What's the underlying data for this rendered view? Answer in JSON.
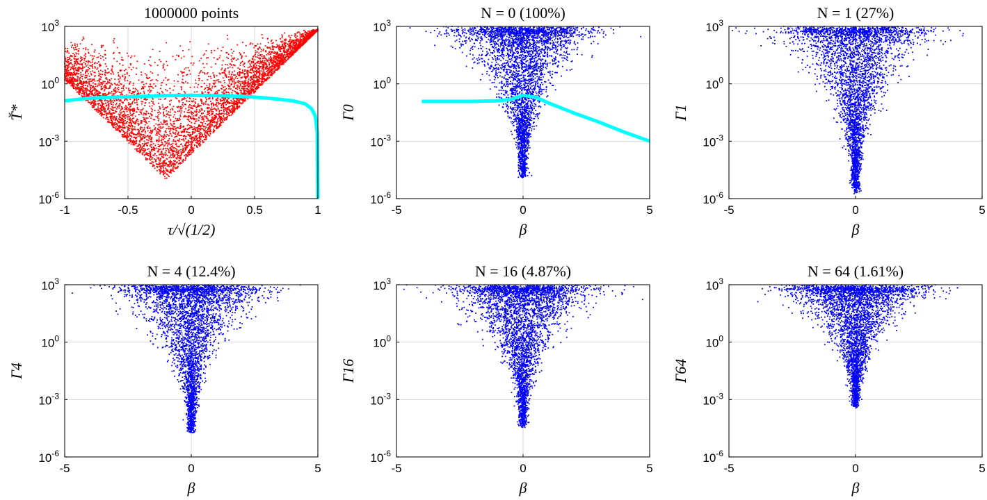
{
  "chart_data": [
    {
      "type": "scatter",
      "title": "1000000 points",
      "xlabel": "τ/√(1/2)",
      "ylabel": "T̆*",
      "x_ticks": [
        "-1",
        "-0.5",
        "0",
        "0.5",
        "1"
      ],
      "xlim": [
        -1,
        1
      ],
      "y_scale": "log",
      "ylim": [
        1e-06,
        1000.0
      ],
      "y_ticks": [
        {
          "base": "10",
          "exp": "-6"
        },
        {
          "base": "10",
          "exp": "-3"
        },
        {
          "base": "10",
          "exp": "0"
        },
        {
          "base": "10",
          "exp": "3"
        }
      ],
      "grid": true,
      "colors": {
        "points": "#ff0000",
        "curve": "#00ffff"
      },
      "point_cloud": {
        "shape": "v",
        "x_center": 0.0,
        "log10_min": -5,
        "log10_max": 2.9
      },
      "series": [
        {
          "kind": "curve",
          "x": [
            -1,
            -0.8,
            -0.6,
            -0.4,
            -0.2,
            0,
            0.2,
            0.4,
            0.6,
            0.8,
            0.9,
            0.95,
            0.98,
            0.995,
            1.0
          ],
          "y": [
            0.13,
            0.18,
            0.2,
            0.22,
            0.24,
            0.25,
            0.24,
            0.22,
            0.18,
            0.13,
            0.09,
            0.05,
            0.02,
            0.003,
            1e-06
          ]
        }
      ]
    },
    {
      "type": "scatter",
      "title": "N = 0 (100%)",
      "xlabel": "β",
      "ylabel": "Γ0",
      "x_ticks": [
        "-5",
        "0",
        "5"
      ],
      "xlim": [
        -5,
        5
      ],
      "y_scale": "log",
      "ylim": [
        1e-06,
        1000.0
      ],
      "y_ticks": [
        {
          "base": "10",
          "exp": "-6"
        },
        {
          "base": "10",
          "exp": "-3"
        },
        {
          "base": "10",
          "exp": "0"
        },
        {
          "base": "10",
          "exp": "3"
        }
      ],
      "grid": true,
      "colors": {
        "points": "#0000ff",
        "curve": "#00ffff"
      },
      "point_cloud": {
        "shape": "funnel",
        "x_center": 0.0,
        "log10_min": -4.7,
        "log10_max": 3.0
      },
      "series": [
        {
          "kind": "curve",
          "x": [
            -4,
            -2,
            -1,
            -0.5,
            0,
            0.5,
            1,
            2,
            3,
            4,
            5
          ],
          "y": [
            0.12,
            0.12,
            0.13,
            0.15,
            0.25,
            0.2,
            0.1,
            0.03,
            0.01,
            0.003,
            0.001
          ]
        }
      ]
    },
    {
      "type": "scatter",
      "title": "N = 1 (27%)",
      "xlabel": "β",
      "ylabel": "Γ1",
      "x_ticks": [
        "-5",
        "0",
        "5"
      ],
      "xlim": [
        -5,
        5
      ],
      "y_scale": "log",
      "ylim": [
        1e-06,
        1000.0
      ],
      "y_ticks": [
        {
          "base": "10",
          "exp": "-6"
        },
        {
          "base": "10",
          "exp": "-3"
        },
        {
          "base": "10",
          "exp": "0"
        },
        {
          "base": "10",
          "exp": "3"
        }
      ],
      "grid": true,
      "colors": {
        "points": "#0000ff"
      },
      "point_cloud": {
        "shape": "funnel",
        "x_center": 0.0,
        "log10_min": -5.5,
        "log10_max": 3.0
      }
    },
    {
      "type": "scatter",
      "title": "N = 4 (12.4%)",
      "xlabel": "β",
      "ylabel": "Γ4",
      "x_ticks": [
        "-5",
        "0",
        "5"
      ],
      "xlim": [
        -5,
        5
      ],
      "y_scale": "log",
      "ylim": [
        1e-06,
        1000.0
      ],
      "y_ticks": [
        {
          "base": "10",
          "exp": "-6"
        },
        {
          "base": "10",
          "exp": "-3"
        },
        {
          "base": "10",
          "exp": "0"
        },
        {
          "base": "10",
          "exp": "3"
        }
      ],
      "grid": true,
      "colors": {
        "points": "#0000ff"
      },
      "point_cloud": {
        "shape": "funnel",
        "x_center": 0.0,
        "log10_min": -4.5,
        "log10_max": 3.0
      }
    },
    {
      "type": "scatter",
      "title": "N = 16 (4.87%)",
      "xlabel": "β",
      "ylabel": "Γ16",
      "x_ticks": [
        "-5",
        "0",
        "5"
      ],
      "xlim": [
        -5,
        5
      ],
      "y_scale": "log",
      "ylim": [
        1e-06,
        1000.0
      ],
      "y_ticks": [
        {
          "base": "10",
          "exp": "-6"
        },
        {
          "base": "10",
          "exp": "-3"
        },
        {
          "base": "10",
          "exp": "0"
        },
        {
          "base": "10",
          "exp": "3"
        }
      ],
      "grid": true,
      "colors": {
        "points": "#0000ff"
      },
      "point_cloud": {
        "shape": "funnel",
        "x_center": 0.0,
        "log10_min": -4.2,
        "log10_max": 3.0
      }
    },
    {
      "type": "scatter",
      "title": "N = 64 (1.61%)",
      "xlabel": "β",
      "ylabel": "Γ64",
      "x_ticks": [
        "-5",
        "0",
        "5"
      ],
      "xlim": [
        -5,
        5
      ],
      "y_scale": "log",
      "ylim": [
        1e-06,
        1000.0
      ],
      "y_ticks": [
        {
          "base": "10",
          "exp": "-6"
        },
        {
          "base": "10",
          "exp": "-3"
        },
        {
          "base": "10",
          "exp": "0"
        },
        {
          "base": "10",
          "exp": "3"
        }
      ],
      "grid": true,
      "colors": {
        "points": "#0000ff"
      },
      "point_cloud": {
        "shape": "funnel",
        "x_center": 0.0,
        "log10_min": -3.2,
        "log10_max": 3.0
      }
    }
  ]
}
